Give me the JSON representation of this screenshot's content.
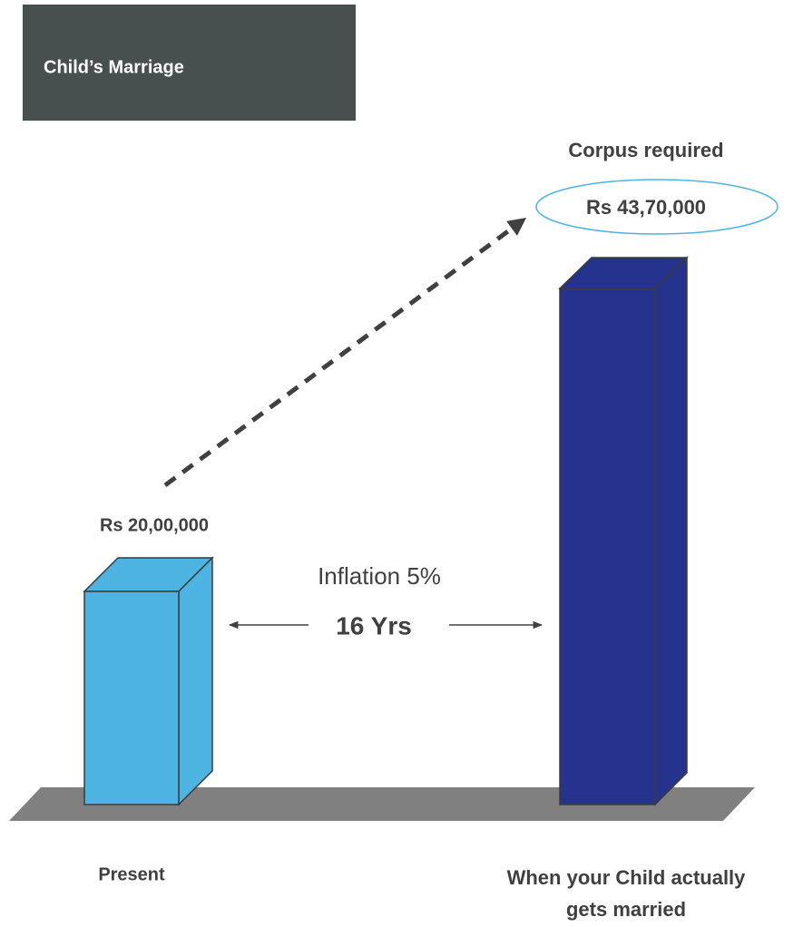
{
  "header": {
    "title": "Child’s Marriage"
  },
  "present": {
    "amount": "Rs 20,00,000",
    "caption": "Present"
  },
  "future": {
    "heading": "Corpus required",
    "amount": "Rs 43,70,000",
    "caption": [
      "When your Child actually",
      "gets married"
    ]
  },
  "inflation": "Inflation 5%",
  "duration": "16 Yrs"
}
